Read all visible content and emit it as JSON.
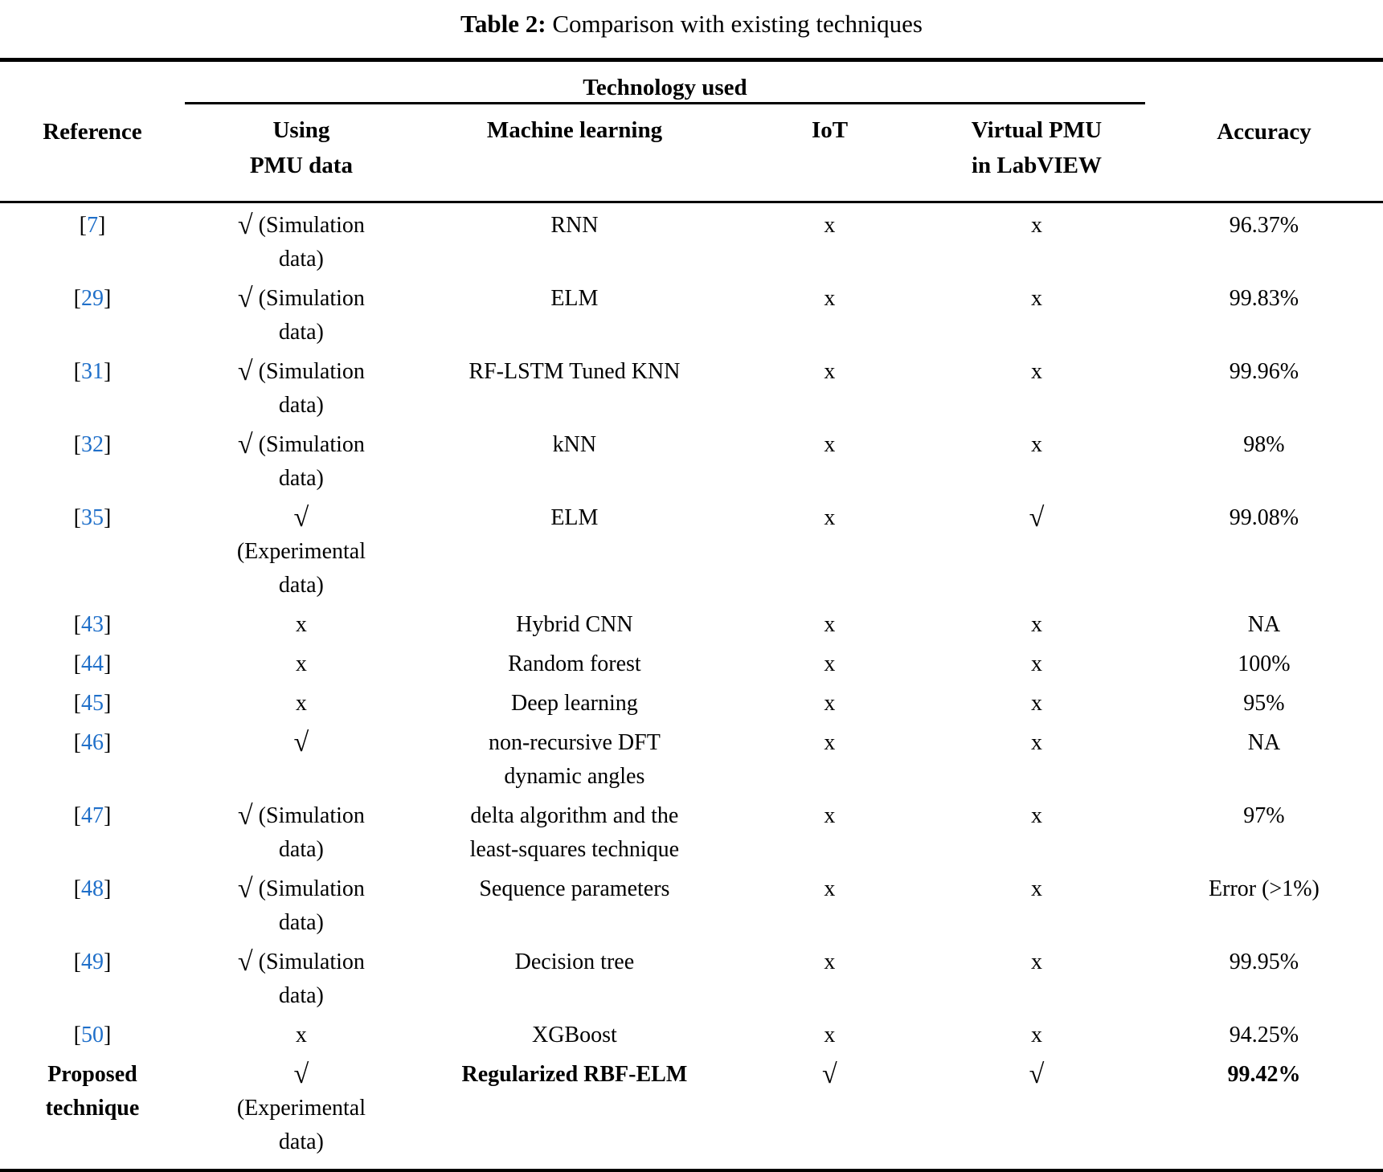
{
  "caption": {
    "label": "Table 2:",
    "text": " Comparison with existing techniques"
  },
  "colors": {
    "citation": "#1f6fc9",
    "text": "#000000",
    "rule": "#000000"
  },
  "header": {
    "reference": "Reference",
    "technology_group": "Technology used",
    "accuracy": "Accuracy",
    "columns": [
      [
        "Using",
        "PMU data"
      ],
      [
        "Machine learning"
      ],
      [
        "IoT"
      ],
      [
        "Virtual PMU",
        "in LabVIEW"
      ]
    ]
  },
  "rows": [
    {
      "ref": {
        "number": "7"
      },
      "pmu": [
        "√ (Simulation",
        "data)"
      ],
      "ml": [
        "RNN"
      ],
      "iot": "x",
      "vpmu": "x",
      "acc": "96.37%",
      "bold": false
    },
    {
      "ref": {
        "number": "29"
      },
      "pmu": [
        "√ (Simulation",
        "data)"
      ],
      "ml": [
        "ELM"
      ],
      "iot": "x",
      "vpmu": "x",
      "acc": "99.83%",
      "bold": false
    },
    {
      "ref": {
        "number": "31"
      },
      "pmu": [
        "√ (Simulation",
        "data)"
      ],
      "ml": [
        "RF-LSTM Tuned KNN"
      ],
      "iot": "x",
      "vpmu": "x",
      "acc": "99.96%",
      "bold": false
    },
    {
      "ref": {
        "number": "32"
      },
      "pmu": [
        "√ (Simulation",
        "data)"
      ],
      "ml": [
        "kNN"
      ],
      "iot": "x",
      "vpmu": "x",
      "acc": "98%",
      "bold": false
    },
    {
      "ref": {
        "number": "35"
      },
      "pmu": [
        "√",
        "(Experimental",
        "data)"
      ],
      "ml": [
        "ELM"
      ],
      "iot": "x",
      "vpmu": "√",
      "acc": "99.08%",
      "bold": false
    },
    {
      "ref": {
        "number": "43"
      },
      "pmu": [
        "x"
      ],
      "ml": [
        "Hybrid CNN"
      ],
      "iot": "x",
      "vpmu": "x",
      "acc": "NA",
      "bold": false
    },
    {
      "ref": {
        "number": "44"
      },
      "pmu": [
        "x"
      ],
      "ml": [
        "Random forest"
      ],
      "iot": "x",
      "vpmu": "x",
      "acc": "100%",
      "bold": false
    },
    {
      "ref": {
        "number": "45"
      },
      "pmu": [
        "x"
      ],
      "ml": [
        "Deep learning"
      ],
      "iot": "x",
      "vpmu": "x",
      "acc": "95%",
      "bold": false
    },
    {
      "ref": {
        "number": "46"
      },
      "pmu": [
        "√"
      ],
      "ml": [
        "non-recursive DFT",
        "dynamic angles"
      ],
      "iot": "x",
      "vpmu": "x",
      "acc": "NA",
      "bold": false
    },
    {
      "ref": {
        "number": "47"
      },
      "pmu": [
        "√ (Simulation",
        "data)"
      ],
      "ml": [
        "delta algorithm and the",
        "least-squares technique"
      ],
      "iot": "x",
      "vpmu": "x",
      "acc": "97%",
      "bold": false
    },
    {
      "ref": {
        "number": "48"
      },
      "pmu": [
        "√ (Simulation",
        "data)"
      ],
      "ml": [
        "Sequence parameters"
      ],
      "iot": "x",
      "vpmu": "x",
      "acc": "Error (>1%)",
      "bold": false
    },
    {
      "ref": {
        "number": "49"
      },
      "pmu": [
        "√ (Simulation",
        "data)"
      ],
      "ml": [
        "Decision tree"
      ],
      "iot": "x",
      "vpmu": "x",
      "acc": "99.95%",
      "bold": false
    },
    {
      "ref": {
        "number": "50"
      },
      "pmu": [
        "x"
      ],
      "ml": [
        "XGBoost"
      ],
      "iot": "x",
      "vpmu": "x",
      "acc": "94.25%",
      "bold": false
    },
    {
      "ref": {
        "label": [
          "Proposed",
          "technique"
        ]
      },
      "pmu": [
        "√",
        "(Experimental",
        "data)"
      ],
      "ml": [
        "Regularized RBF-ELM"
      ],
      "iot": "√",
      "vpmu": "√",
      "acc": "99.42%",
      "bold": true
    }
  ]
}
